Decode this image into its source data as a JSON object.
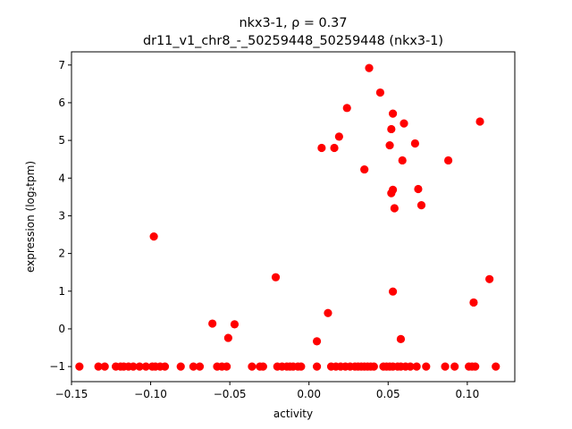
{
  "chart_data": {
    "type": "scatter",
    "title_line1": "nkx3-1, ρ = 0.37",
    "title_line2": "dr11_v1_chr8_-_50259448_50259448 (nkx3-1)",
    "xlabel": "activity",
    "ylabel": "expression (log₂tpm)",
    "xlim": [
      -0.15,
      0.13
    ],
    "ylim": [
      -1.4,
      7.35
    ],
    "xticks": [
      -0.15,
      -0.1,
      -0.05,
      0.0,
      0.05,
      0.1
    ],
    "xtick_labels": [
      "−0.15",
      "−0.10",
      "−0.05",
      "0.00",
      "0.05",
      "0.10"
    ],
    "yticks": [
      -1,
      0,
      1,
      2,
      3,
      4,
      5,
      6,
      7
    ],
    "ytick_labels": [
      "−1",
      "0",
      "1",
      "2",
      "3",
      "4",
      "5",
      "6",
      "7"
    ],
    "grid": false,
    "marker_color": "#ff0000",
    "series": [
      {
        "x": [
          -0.145,
          -0.133,
          -0.129,
          -0.122,
          -0.119,
          -0.117,
          -0.114,
          -0.111,
          -0.107,
          -0.103,
          -0.099,
          -0.097,
          -0.094,
          -0.091,
          -0.081,
          -0.073,
          -0.069,
          -0.058,
          -0.055,
          -0.052,
          -0.036,
          -0.031,
          -0.029,
          -0.02,
          -0.017,
          -0.014,
          -0.012,
          -0.01,
          -0.007,
          -0.005,
          0.005,
          0.014,
          0.017,
          0.02,
          0.023,
          0.026,
          0.029,
          0.031,
          0.033,
          0.035,
          0.037,
          0.039,
          0.041,
          0.047,
          0.049,
          0.051,
          0.053,
          0.056,
          0.058,
          0.061,
          0.064,
          0.068,
          0.074,
          0.086,
          0.092,
          0.101,
          0.103,
          0.105,
          0.118,
          -0.098,
          -0.021,
          -0.061,
          -0.047,
          -0.051,
          0.012,
          0.005,
          0.053,
          0.058,
          0.104,
          0.114,
          0.038,
          0.045,
          0.024,
          0.053,
          0.06,
          0.019,
          0.052,
          0.108,
          0.008,
          0.016,
          0.051,
          0.067,
          0.059,
          0.088,
          0.035,
          0.053,
          0.052,
          0.069,
          0.071,
          0.054
        ],
        "y": [
          -1,
          -1,
          -1,
          -1,
          -1,
          -1,
          -1,
          -1,
          -1,
          -1,
          -1,
          -1,
          -1,
          -1,
          -1,
          -1,
          -1,
          -1,
          -1,
          -1,
          -1,
          -1,
          -1,
          -1,
          -1,
          -1,
          -1,
          -1,
          -1,
          -1,
          -1,
          -1,
          -1,
          -1,
          -1,
          -1,
          -1,
          -1,
          -1,
          -1,
          -1,
          -1,
          -1,
          -1,
          -1,
          -1,
          -1,
          -1,
          -1,
          -1,
          -1,
          -1,
          -1,
          -1,
          -1,
          -1,
          -1,
          -1,
          -1,
          2.45,
          1.37,
          0.14,
          0.12,
          -0.24,
          0.42,
          -0.33,
          0.99,
          -0.27,
          0.7,
          1.32,
          6.92,
          6.27,
          5.86,
          5.71,
          5.45,
          5.1,
          5.3,
          5.5,
          4.8,
          4.8,
          4.87,
          4.92,
          4.47,
          4.47,
          4.23,
          3.69,
          3.6,
          3.71,
          3.28,
          3.2
        ]
      }
    ]
  }
}
